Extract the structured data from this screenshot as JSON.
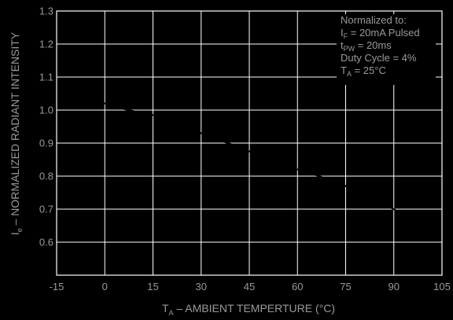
{
  "chart_data": {
    "type": "line",
    "title": "",
    "xlabel_main": "T",
    "xlabel_sub": "A",
    "xlabel_rest": " – AMBIENT TEMPERTURE (°C)",
    "ylabel_main": "I",
    "ylabel_sub": "e",
    "ylabel_rest": " – NORMALIZED RADIANT INTENSITY",
    "xlim": [
      -15,
      105
    ],
    "ylim": [
      0.5,
      1.3
    ],
    "x_ticks": [
      -15,
      0,
      15,
      30,
      45,
      60,
      75,
      90,
      105
    ],
    "x_tick_labels": [
      "-15",
      "0",
      "15",
      "30",
      "45",
      "60",
      "75",
      "90",
      "105"
    ],
    "y_ticks": [
      0.6,
      0.7,
      0.8,
      0.9,
      1.0,
      1.1,
      1.2,
      1.3
    ],
    "y_tick_labels": [
      "0.6",
      "0.7",
      "0.8",
      "0.9",
      "1.0",
      "1.1",
      "1.2",
      "1.3"
    ],
    "grid": true,
    "line_color": "#000000",
    "grid_color": "#ffffff",
    "series": [
      {
        "x": [
          -10,
          -5,
          0,
          5,
          10,
          15,
          20,
          25,
          30,
          35,
          40,
          45,
          50,
          55,
          60,
          65,
          70,
          75,
          80,
          85,
          90,
          95,
          100
        ],
        "y": [
          1.06,
          1.04,
          1.02,
          1.005,
          0.995,
          0.985,
          0.965,
          0.945,
          0.93,
          0.91,
          0.895,
          0.875,
          0.855,
          0.835,
          0.82,
          0.805,
          0.79,
          0.77,
          0.745,
          0.72,
          0.7,
          0.67,
          0.66
        ]
      }
    ]
  },
  "annotation": {
    "lines": [
      {
        "main": "Normalized to:",
        "sub": "",
        "rest": ""
      },
      {
        "main": "I",
        "sub": "F",
        "rest": " = 20mA Pulsed"
      },
      {
        "main": "t",
        "sub": "PW",
        "rest": " = 20ms"
      },
      {
        "main": "Duty Cycle = 4%",
        "sub": "",
        "rest": ""
      },
      {
        "main": "T",
        "sub": "A",
        "rest": " = 25°C"
      }
    ]
  }
}
